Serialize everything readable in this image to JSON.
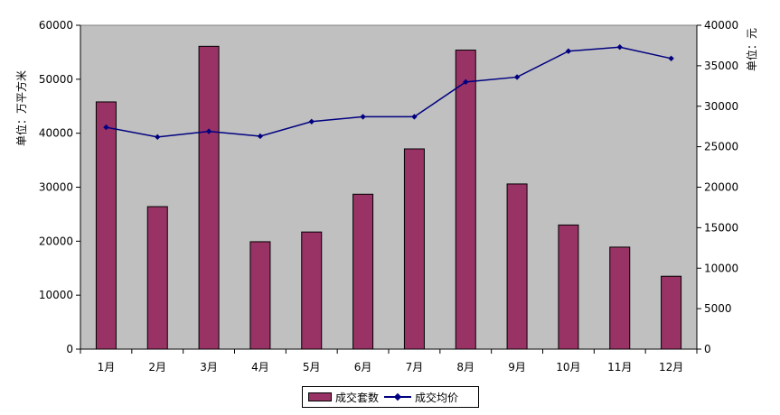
{
  "chart_data": {
    "type": "bar",
    "categories": [
      "1月",
      "2月",
      "3月",
      "4月",
      "5月",
      "6月",
      "7月",
      "8月",
      "9月",
      "10月",
      "11月",
      "12月"
    ],
    "series": [
      {
        "name": "成交套数",
        "type": "bar",
        "axis": "left",
        "color": "#993366",
        "values": [
          45800,
          26400,
          56100,
          19900,
          21700,
          28700,
          37100,
          55400,
          30600,
          23000,
          18900,
          13500
        ]
      },
      {
        "name": "成交均价",
        "type": "line",
        "axis": "right",
        "color": "#000080",
        "values": [
          27400,
          26200,
          26900,
          26300,
          28100,
          28700,
          28700,
          33000,
          33600,
          36800,
          37300,
          35900
        ]
      }
    ],
    "y_left": {
      "label": "单位：万平方米",
      "ylim": [
        0,
        60000
      ],
      "ticks": [
        "0",
        "10000",
        "20000",
        "30000",
        "40000",
        "50000",
        "60000"
      ]
    },
    "y_right": {
      "label": "单位：元",
      "ylim": [
        0,
        40000
      ],
      "ticks": [
        "0",
        "5000",
        "10000",
        "15000",
        "20000",
        "25000",
        "30000",
        "35000",
        "40000"
      ]
    },
    "grid": false,
    "legend": "bottom",
    "plot_background": "#c0c0c0"
  }
}
